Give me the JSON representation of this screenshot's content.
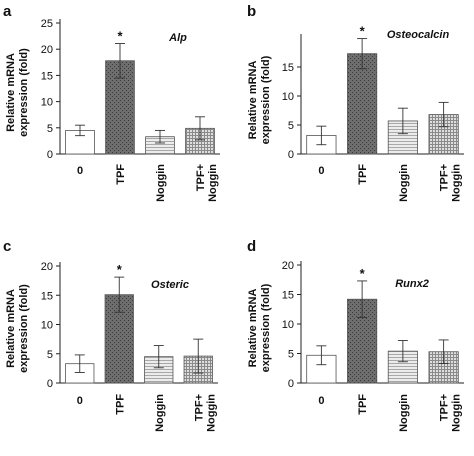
{
  "figure": {
    "ylabel_line1": "Relative mRNA",
    "ylabel_line2": "expression (fold)",
    "categories": [
      "0",
      "TPF",
      "Noggin",
      "TPF+ Noggin"
    ]
  },
  "chart_data": [
    {
      "panel": "a",
      "type": "bar",
      "title": "Alp",
      "xlabel": "",
      "ylabel": "Relative mRNA expression (fold)",
      "categories": [
        "0",
        "TPF",
        "Noggin",
        "TPF+ Noggin"
      ],
      "values": [
        4.5,
        17.8,
        3.3,
        4.9
      ],
      "errors": [
        1.0,
        3.3,
        1.2,
        2.2
      ],
      "ylim": [
        0,
        25
      ],
      "yticks": [
        0,
        5,
        10,
        15,
        20,
        25
      ],
      "significance": [
        "",
        "*",
        "",
        ""
      ],
      "fills": [
        "white",
        "dark-dots",
        "h-stripes",
        "grid"
      ]
    },
    {
      "panel": "b",
      "type": "bar",
      "title": "Osteocalcin",
      "xlabel": "",
      "ylabel": "Relative mRNA expression (fold)",
      "categories": [
        "0",
        "TPF",
        "Noggin",
        "TPF+ Noggin"
      ],
      "values": [
        3.2,
        17.3,
        5.7,
        6.8
      ],
      "errors": [
        1.6,
        2.6,
        2.2,
        2.1
      ],
      "ylim": [
        0,
        20
      ],
      "yticks": [
        0,
        5,
        10,
        15
      ],
      "significance": [
        "",
        "*",
        "",
        ""
      ],
      "fills": [
        "white",
        "dark-dots",
        "h-stripes",
        "grid"
      ]
    },
    {
      "panel": "c",
      "type": "bar",
      "title": "Osteric",
      "xlabel": "",
      "ylabel": "Relative mRNA expression (fold)",
      "categories": [
        "0",
        "TPF",
        "Noggin",
        "TPF+ Noggin"
      ],
      "values": [
        3.3,
        15.1,
        4.5,
        4.6
      ],
      "errors": [
        1.5,
        3.0,
        1.9,
        2.9
      ],
      "ylim": [
        0,
        20
      ],
      "yticks": [
        0,
        5,
        10,
        15,
        20
      ],
      "significance": [
        "",
        "*",
        "",
        ""
      ],
      "fills": [
        "white",
        "dark-dots",
        "h-stripes",
        "grid"
      ]
    },
    {
      "panel": "d",
      "type": "bar",
      "title": "Runx2",
      "xlabel": "",
      "ylabel": "Relative mRNA expression (fold)",
      "categories": [
        "0",
        "TPF",
        "Noggin",
        "TPF+ Noggin"
      ],
      "values": [
        4.7,
        14.2,
        5.4,
        5.3
      ],
      "errors": [
        1.6,
        3.1,
        1.8,
        2.0
      ],
      "ylim": [
        0,
        20
      ],
      "yticks": [
        0,
        5,
        10,
        15,
        20
      ],
      "significance": [
        "",
        "*",
        "",
        ""
      ],
      "fills": [
        "white",
        "dark-dots",
        "h-stripes",
        "grid"
      ]
    }
  ]
}
